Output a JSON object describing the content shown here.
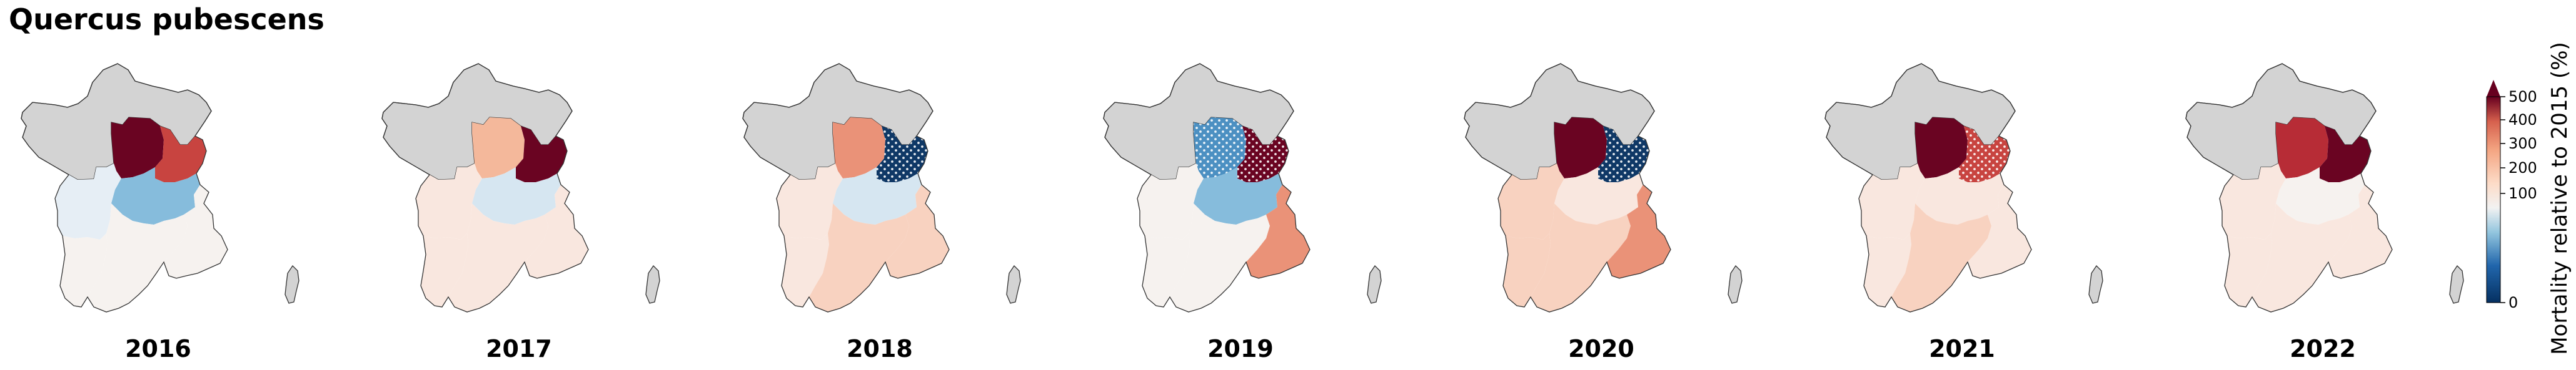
{
  "title": "Quercus pubescens",
  "hatch_meaning": "stippled",
  "colors": {
    "nodata": "#d3d3d3",
    "blue_mid": "#86bcdc",
    "blue_light": "#d6e6f1",
    "blue_pale": "#e6eef5",
    "neutral": "#f6f2ef",
    "peach_pale": "#f9e7df",
    "peach": "#f8d2c0",
    "salmon_light": "#f4b89b",
    "salmon": "#ea9278",
    "red": "#c84440",
    "red_mid": "#b72c36",
    "darkred": "#6a0422",
    "navy": "#0f3866",
    "steel": "#4c90c2"
  },
  "years": [
    {
      "label": "2016",
      "regions": {
        "north": "nodata",
        "idf": "darkred",
        "east": "red",
        "westcentre": "blue_pale",
        "centre": "blue_mid",
        "southwest": "neutral",
        "south": "neutral",
        "southeast": "neutral"
      },
      "hatched": []
    },
    {
      "label": "2017",
      "regions": {
        "north": "nodata",
        "idf": "salmon_light",
        "east": "darkred",
        "westcentre": "peach_pale",
        "centre": "blue_light",
        "southwest": "peach_pale",
        "south": "peach_pale",
        "southeast": "peach_pale"
      },
      "hatched": []
    },
    {
      "label": "2018",
      "regions": {
        "north": "nodata",
        "idf": "salmon",
        "east": "navy",
        "westcentre": "peach_pale",
        "centre": "blue_light",
        "southwest": "peach_pale",
        "south": "peach",
        "southeast": "peach"
      },
      "hatched": [
        "east"
      ]
    },
    {
      "label": "2019",
      "regions": {
        "north": "nodata",
        "idf": "steel",
        "east": "darkred",
        "westcentre": "neutral",
        "centre": "blue_mid",
        "southwest": "neutral",
        "south": "neutral",
        "southeast": "salmon"
      },
      "hatched": [
        "idf",
        "east"
      ]
    },
    {
      "label": "2020",
      "regions": {
        "north": "nodata",
        "idf": "darkred",
        "east": "navy",
        "westcentre": "peach",
        "centre": "peach_pale",
        "southwest": "peach",
        "south": "peach",
        "southeast": "salmon"
      },
      "hatched": [
        "east"
      ]
    },
    {
      "label": "2021",
      "regions": {
        "north": "nodata",
        "idf": "darkred",
        "east": "red",
        "westcentre": "peach_pale",
        "centre": "peach_pale",
        "southwest": "peach_pale",
        "south": "peach",
        "southeast": "peach_pale"
      },
      "hatched": [
        "east"
      ]
    },
    {
      "label": "2022",
      "regions": {
        "north": "nodata",
        "idf": "red_mid",
        "east": "darkred",
        "westcentre": "peach_pale",
        "centre": "neutral",
        "southwest": "peach_pale",
        "south": "peach_pale",
        "southeast": "peach_pale"
      },
      "hatched": []
    }
  ],
  "colorbar": {
    "label": "Mortality relative to 2015 (%)",
    "ticks": [
      "500",
      "400",
      "300",
      "200",
      "100",
      "0"
    ],
    "tick_values": [
      500,
      400,
      300,
      200,
      100,
      0
    ],
    "extend": "max"
  }
}
